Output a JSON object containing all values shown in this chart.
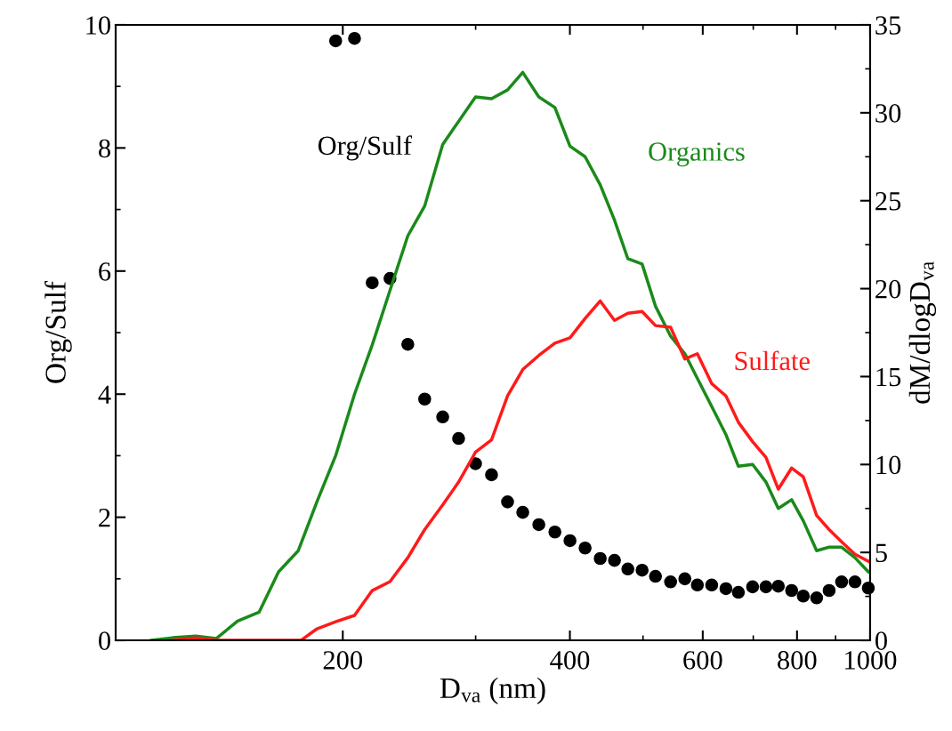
{
  "chart_data": {
    "type": "line",
    "xlabel": "D$_{va}$ (nm)",
    "ylabel": "Org/Sulf",
    "y2label": "dM/dlogD$_{va}$",
    "log": "x",
    "grid": false,
    "legend": false,
    "xlim": [
      100,
      1000
    ],
    "xticks": [
      200,
      400,
      600,
      800,
      1000
    ],
    "ylim": [
      0,
      10
    ],
    "yticks": [
      0,
      2,
      4,
      6,
      8,
      10
    ],
    "y2lim": [
      0,
      35
    ],
    "y2ticks": [
      0,
      5,
      10,
      15,
      20,
      25,
      30,
      35
    ],
    "series": [
      {
        "name": "Org/Sulf",
        "type": "scatter",
        "marker": "circle",
        "color": "#000000",
        "axis": "y",
        "x": [
          195.7,
          207.3,
          218.8,
          231.0,
          243.9,
          256.8,
          271.3,
          284.8,
          299.9,
          314.9,
          330.7,
          346.4,
          363.8,
          382.1,
          400.1,
          419.0,
          438.8,
          458.3,
          477.4,
          498.6,
          519.4,
          543.9,
          568.1,
          590.2,
          616.6,
          644.0,
          668.9,
          698.6,
          727.7,
          755.6,
          787.0,
          815.4,
          849.4,
          882.4,
          916.6,
          954.8,
          994.5
        ],
        "values": [
          9.74,
          9.78,
          5.81,
          5.88,
          4.81,
          3.92,
          3.63,
          3.28,
          2.87,
          2.69,
          2.25,
          2.08,
          1.88,
          1.76,
          1.62,
          1.5,
          1.33,
          1.3,
          1.16,
          1.14,
          1.04,
          0.95,
          1.0,
          0.9,
          0.9,
          0.84,
          0.78,
          0.87,
          0.87,
          0.88,
          0.81,
          0.72,
          0.69,
          0.81,
          0.95,
          0.95,
          0.85
        ]
      },
      {
        "name": "Organics",
        "color": "#1a8a1a",
        "axis": "y2",
        "x": [
          111.5,
          119.0,
          127.7,
          135.9,
          145.1,
          154.9,
          164.4,
          174.6,
          184.9,
          195.7,
          207.3,
          218.8,
          231.0,
          243.9,
          256.8,
          271.3,
          299.9,
          314.9,
          330.7,
          346.4,
          363.8,
          382.1,
          400.1,
          419.0,
          438.8,
          458.3,
          477.4,
          498.6,
          519.4,
          543.9,
          568.1,
          590.2,
          616.6,
          644.0,
          668.9,
          698.6,
          727.7,
          755.6,
          787.0,
          815.4,
          849.4,
          882.4,
          916.6,
          954.8,
          994.5
        ],
        "values": [
          0,
          0.15,
          0.25,
          0.1,
          1.1,
          1.6,
          3.9,
          5.1,
          7.9,
          10.5,
          14.0,
          16.8,
          19.9,
          23.0,
          24.7,
          28.2,
          30.9,
          30.8,
          31.3,
          32.3,
          30.9,
          30.3,
          28.1,
          27.5,
          25.9,
          23.9,
          21.7,
          21.4,
          19.0,
          17.3,
          16.3,
          14.9,
          13.3,
          11.7,
          9.9,
          10.0,
          9.0,
          7.5,
          8.0,
          6.8,
          5.1,
          5.3,
          5.3,
          4.7,
          3.9
        ]
      },
      {
        "name": "Sulfate",
        "color": "#ff1a1a",
        "axis": "y2",
        "x": [
          119.0,
          127.7,
          135.9,
          176.0,
          184.9,
          195.7,
          207.3,
          218.8,
          231.0,
          243.9,
          256.8,
          271.3,
          284.8,
          299.9,
          314.9,
          330.7,
          346.4,
          363.8,
          382.1,
          400.1,
          419.0,
          438.8,
          458.3,
          477.4,
          498.6,
          519.4,
          543.9,
          568.1,
          590.2,
          616.6,
          644.0,
          668.9,
          698.6,
          727.7,
          755.6,
          787.0,
          815.4,
          849.4,
          882.4,
          916.6,
          954.8,
          994.5
        ],
        "values": [
          0,
          0.15,
          0,
          0,
          0.66,
          1.06,
          1.42,
          2.83,
          3.34,
          4.7,
          6.3,
          7.7,
          9.0,
          10.7,
          11.4,
          13.9,
          15.4,
          16.2,
          16.9,
          17.2,
          18.3,
          19.3,
          18.2,
          18.6,
          18.7,
          17.9,
          17.8,
          16.0,
          16.3,
          14.6,
          13.9,
          12.4,
          11.3,
          10.4,
          8.6,
          9.8,
          9.3,
          7.1,
          6.3,
          5.6,
          4.9,
          4.5
        ]
      }
    ]
  }
}
